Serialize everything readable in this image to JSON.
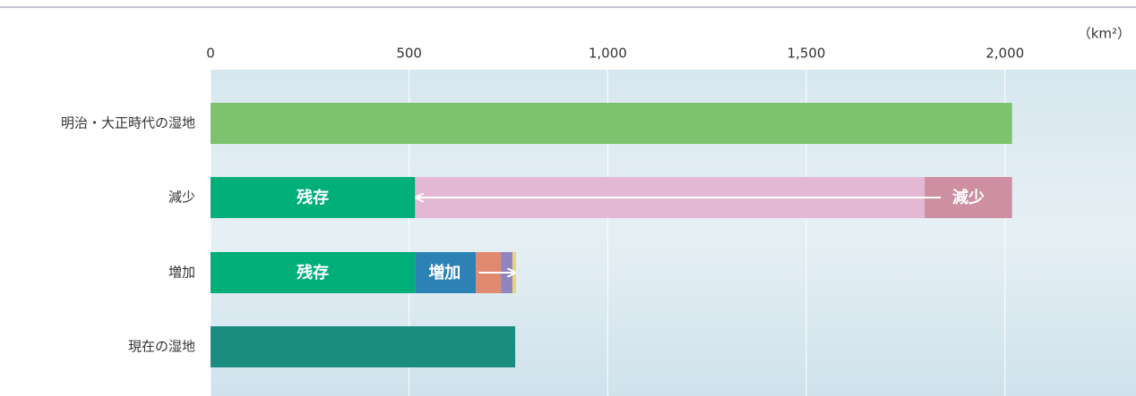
{
  "chart_data": {
    "type": "stacked-horizontal-bar",
    "unit": "（km²）",
    "categories": [
      "明治・大正時代の湿地",
      "減少",
      "増加",
      "現在の湿地"
    ],
    "bars": [
      [
        {
          "value": 2018,
          "color": "#7dc36e"
        }
      ],
      [
        {
          "value": 515,
          "color": "#00ae78",
          "label": "残存"
        },
        {
          "value": 1283,
          "color": "#e2b8d4"
        },
        {
          "value": 220,
          "color": "#cd8fa1",
          "label": "減少"
        }
      ],
      [
        {
          "value": 515,
          "color": "#00ae78",
          "label": "残存"
        },
        {
          "value": 153,
          "color": "#2d82b5",
          "label": "増加"
        },
        {
          "value": 63,
          "color": "#e08a70"
        },
        {
          "value": 29,
          "color": "#8e85c1"
        },
        {
          "value": 9,
          "color": "#e8d57a"
        }
      ],
      [
        {
          "value": 767,
          "color": "#1a8c80"
        }
      ]
    ],
    "xlim": [
      0,
      2330
    ],
    "xticks": [
      0,
      500,
      {
        "value": 1000,
        "label": "1,000"
      },
      {
        "value": 1500,
        "label": "1,500"
      },
      {
        "value": 2000,
        "label": "2,000"
      }
    ],
    "grid": true
  }
}
